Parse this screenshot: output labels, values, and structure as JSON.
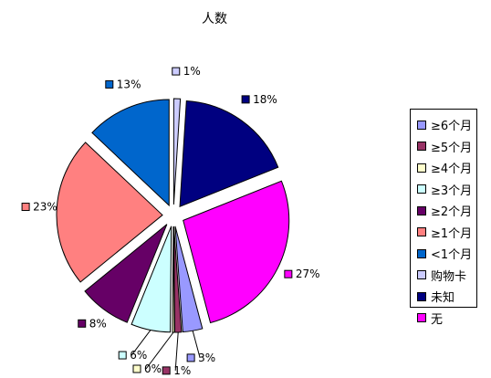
{
  "chart_data": {
    "type": "pie",
    "title": "人数",
    "start": "top",
    "direction": "clockwise",
    "exploded": true,
    "slices": [
      {
        "name": "购物卡",
        "value": 1,
        "label": "1%",
        "color": "#ccccff"
      },
      {
        "name": "未知",
        "value": 18,
        "label": "18%",
        "color": "#000080"
      },
      {
        "name": "无",
        "value": 27,
        "label": "27%",
        "color": "#ff00ff"
      },
      {
        "name": "≥6个月",
        "value": 3,
        "label": "3%",
        "color": "#9999ff"
      },
      {
        "name": "≥5个月",
        "value": 1,
        "label": "1%",
        "color": "#993366"
      },
      {
        "name": "≥4个月",
        "value": 0.3,
        "label": "0%",
        "color": "#ffffcc"
      },
      {
        "name": "≥3个月",
        "value": 6,
        "label": "6%",
        "color": "#ccffff"
      },
      {
        "name": "≥2个月",
        "value": 8,
        "label": "8%",
        "color": "#660066"
      },
      {
        "name": "≥1个月",
        "value": 23,
        "label": "23%",
        "color": "#ff8080"
      },
      {
        "name": "<1个月",
        "value": 13,
        "label": "13%",
        "color": "#0066cc"
      }
    ],
    "legend": {
      "placement": "right",
      "items": [
        {
          "label": "≥6个月",
          "color": "#9999ff"
        },
        {
          "label": "≥5个月",
          "color": "#993366"
        },
        {
          "label": "≥4个月",
          "color": "#ffffcc"
        },
        {
          "label": "≥3个月",
          "color": "#ccffff"
        },
        {
          "label": "≥2个月",
          "color": "#660066"
        },
        {
          "label": "≥1个月",
          "color": "#ff8080"
        },
        {
          "label": "<1个月",
          "color": "#0066cc"
        },
        {
          "label": "购物卡",
          "color": "#ccccff"
        },
        {
          "label": "未知",
          "color": "#000080"
        },
        {
          "label": "无",
          "color": "#ff00ff"
        }
      ]
    }
  }
}
